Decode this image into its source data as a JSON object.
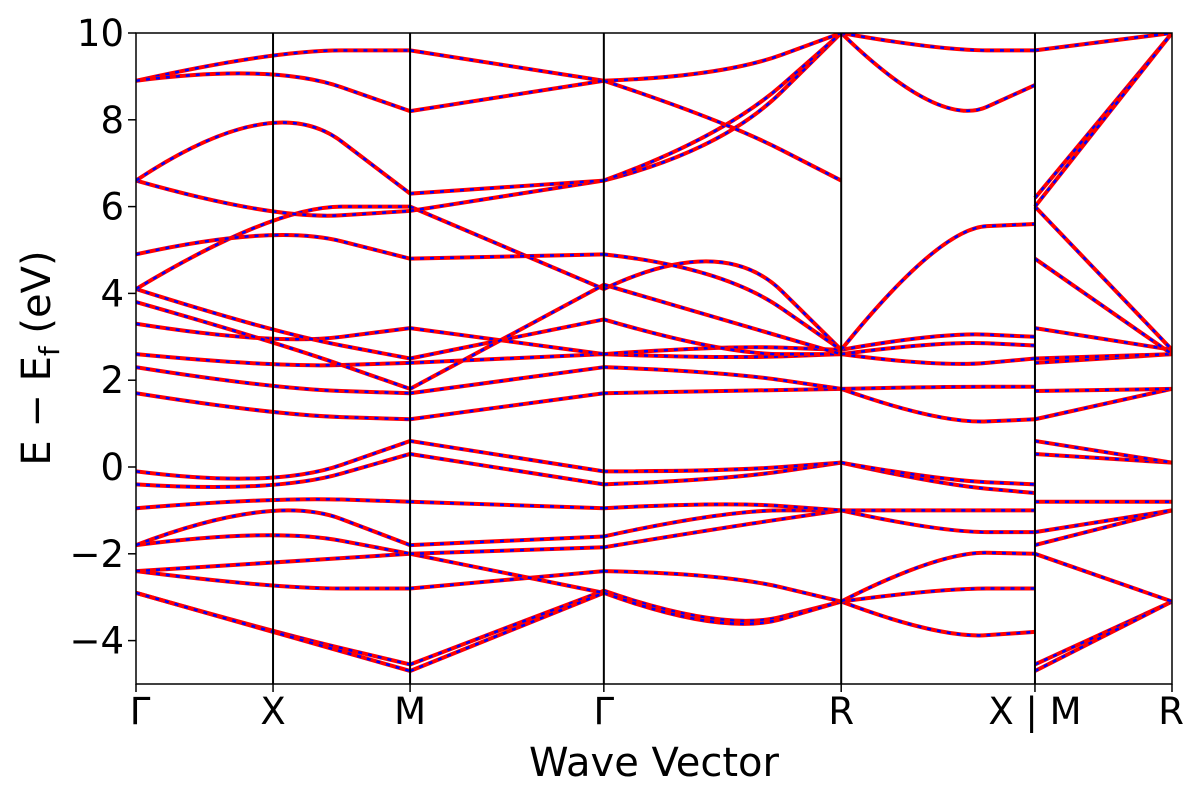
{
  "chart_data": {
    "type": "line",
    "title": "",
    "xlabel": "Wave Vector",
    "ylabel": "E − E_f (eV)",
    "ylabel_main": "E − E",
    "ylabel_sub": "f",
    "ylabel_unit": " (eV)",
    "ylim": [
      -5,
      10
    ],
    "yticks": [
      -4,
      -2,
      0,
      2,
      4,
      6,
      8,
      10
    ],
    "ytick_labels": [
      "−4",
      "−2",
      "0",
      "2",
      "4",
      "6",
      "8",
      "10"
    ],
    "grid": false,
    "legend": "none",
    "kpath": {
      "labels": [
        "Γ",
        "X",
        "M",
        "Γ",
        "R",
        "X | M",
        "R"
      ],
      "positions": [
        0.0,
        0.5,
        1.0,
        1.707,
        2.573,
        3.28,
        3.78
      ]
    },
    "colors": {
      "line_primary": "#ff0000",
      "line_secondary": "#0000ff",
      "axes": "#000000"
    },
    "series": [
      {
        "values": [
          {
            "k": [
              0,
              0.5,
              1
            ],
            "E": [
              -2.9,
              -3.8,
              -4.55
            ]
          },
          {
            "k": [
              1,
              1.707
            ],
            "E": [
              -4.55,
              -2.85
            ]
          },
          {
            "k": [
              1.707,
              2.14,
              2.573
            ],
            "E": [
              -2.85,
              -3.8,
              -3.1
            ]
          },
          {
            "k": [
              2.573,
              2.93,
              3.28
            ],
            "E": [
              -3.1,
              -3.95,
              -3.8
            ]
          },
          {
            "k": [
              3.28,
              3.78
            ],
            "E": [
              -4.55,
              -3.1
            ]
          },
          {
            "k": [
              0,
              0.5,
              1
            ],
            "E": [
              -2.9,
              -3.8,
              -4.7
            ]
          },
          {
            "k": [
              1,
              1.707
            ],
            "E": [
              -4.7,
              -2.9
            ]
          },
          {
            "k": [
              1.707,
              2.14,
              2.573
            ],
            "E": [
              -2.9,
              -3.9,
              -3.1
            ]
          },
          {
            "k": [
              3.28,
              3.78
            ],
            "E": [
              -4.7,
              -3.1
            ]
          },
          {
            "k": [
              0,
              0.5,
              1
            ],
            "E": [
              -2.4,
              -2.8,
              -2.8
            ]
          },
          {
            "k": [
              1,
              1.707
            ],
            "E": [
              -2.8,
              -2.4
            ]
          },
          {
            "k": [
              1.707,
              2.14,
              2.573
            ],
            "E": [
              -2.4,
              -2.45,
              -3.1
            ]
          },
          {
            "k": [
              2.573,
              2.93,
              3.28
            ],
            "E": [
              -3.1,
              -2.8,
              -2.8
            ]
          },
          {
            "k": [
              3.28,
              3.78
            ],
            "E": [
              -2.0,
              -3.1
            ]
          },
          {
            "k": [
              0,
              0.5,
              1
            ],
            "E": [
              -2.4,
              -2.2,
              -2.0
            ]
          },
          {
            "k": [
              1,
              1.707
            ],
            "E": [
              -2.0,
              -2.9
            ]
          },
          {
            "k": [
              2.573,
              2.93,
              3.28
            ],
            "E": [
              -3.1,
              -1.95,
              -2.0
            ]
          },
          {
            "k": [
              0,
              0.5,
              1
            ],
            "E": [
              -1.8,
              -1.4,
              -2.0
            ]
          },
          {
            "k": [
              1,
              1.707
            ],
            "E": [
              -2.0,
              -1.85
            ]
          },
          {
            "k": [
              1.707,
              2.14,
              2.573
            ],
            "E": [
              -1.85,
              -1.4,
              -1.0
            ]
          },
          {
            "k": [
              3.28,
              3.78
            ],
            "E": [
              -1.8,
              -1.0
            ]
          },
          {
            "k": [
              0,
              0.5,
              1
            ],
            "E": [
              -1.8,
              -0.6,
              -1.8
            ]
          },
          {
            "k": [
              1,
              1.707
            ],
            "E": [
              -1.8,
              -1.6
            ]
          },
          {
            "k": [
              1.707,
              2.14,
              2.573
            ],
            "E": [
              -1.6,
              -1.0,
              -1.0
            ]
          },
          {
            "k": [
              2.573,
              2.93,
              3.28
            ],
            "E": [
              -1.0,
              -1.5,
              -1.5
            ]
          },
          {
            "k": [
              3.28,
              3.78
            ],
            "E": [
              -1.5,
              -1.0
            ]
          },
          {
            "k": [
              0,
              0.5,
              1
            ],
            "E": [
              -0.95,
              -0.7,
              -0.8
            ]
          },
          {
            "k": [
              1,
              1.707
            ],
            "E": [
              -0.8,
              -0.95
            ]
          },
          {
            "k": [
              1.707,
              2.14,
              2.573
            ],
            "E": [
              -0.95,
              -0.8,
              -1.0
            ]
          },
          {
            "k": [
              2.573,
              2.93,
              3.28
            ],
            "E": [
              -1.0,
              -1.0,
              -1.0
            ]
          },
          {
            "k": [
              3.28,
              3.78
            ],
            "E": [
              -0.8,
              -0.8
            ]
          },
          {
            "k": [
              0,
              0.5,
              1
            ],
            "E": [
              -0.4,
              -0.6,
              0.3
            ]
          },
          {
            "k": [
              1,
              1.707
            ],
            "E": [
              0.3,
              -0.4
            ]
          },
          {
            "k": [
              1.707,
              2.14,
              2.573
            ],
            "E": [
              -0.4,
              -0.3,
              0.1
            ]
          },
          {
            "k": [
              2.573,
              2.93,
              3.28
            ],
            "E": [
              0.1,
              -0.4,
              -0.6
            ]
          },
          {
            "k": [
              3.28,
              3.78
            ],
            "E": [
              0.3,
              0.1
            ]
          },
          {
            "k": [
              0,
              0.5,
              1
            ],
            "E": [
              -0.1,
              -0.5,
              0.6
            ]
          },
          {
            "k": [
              1,
              1.707
            ],
            "E": [
              0.6,
              -0.1
            ]
          },
          {
            "k": [
              1.707,
              2.14,
              2.573
            ],
            "E": [
              -0.1,
              -0.1,
              0.1
            ]
          },
          {
            "k": [
              2.573,
              2.93,
              3.28
            ],
            "E": [
              0.1,
              -0.3,
              -0.4
            ]
          },
          {
            "k": [
              3.28,
              3.78
            ],
            "E": [
              0.6,
              0.1
            ]
          },
          {
            "k": [
              0,
              0.5,
              1
            ],
            "E": [
              1.7,
              1.2,
              1.1
            ]
          },
          {
            "k": [
              1,
              1.707
            ],
            "E": [
              1.1,
              1.7
            ]
          },
          {
            "k": [
              1.707,
              2.14,
              2.573
            ],
            "E": [
              1.7,
              1.75,
              1.8
            ]
          },
          {
            "k": [
              2.573,
              2.93,
              3.28
            ],
            "E": [
              1.8,
              1.0,
              1.1
            ]
          },
          {
            "k": [
              3.28,
              3.78
            ],
            "E": [
              1.1,
              1.8
            ]
          },
          {
            "k": [
              0,
              0.5,
              1
            ],
            "E": [
              2.3,
              1.8,
              1.7
            ]
          },
          {
            "k": [
              1,
              1.707
            ],
            "E": [
              1.7,
              2.3
            ]
          },
          {
            "k": [
              1.707,
              2.14,
              2.573
            ],
            "E": [
              2.3,
              2.2,
              1.8
            ]
          },
          {
            "k": [
              2.573,
              2.93,
              3.28
            ],
            "E": [
              1.8,
              1.85,
              1.85
            ]
          },
          {
            "k": [
              3.28,
              3.78
            ],
            "E": [
              1.75,
              1.8
            ]
          },
          {
            "k": [
              0,
              0.5,
              1
            ],
            "E": [
              2.6,
              2.3,
              2.4
            ]
          },
          {
            "k": [
              1,
              1.707
            ],
            "E": [
              2.4,
              2.6
            ]
          },
          {
            "k": [
              1.707,
              2.14,
              2.573
            ],
            "E": [
              2.6,
              2.5,
              2.6
            ]
          },
          {
            "k": [
              2.573,
              2.93,
              3.28
            ],
            "E": [
              2.6,
              2.3,
              2.5
            ]
          },
          {
            "k": [
              3.28,
              3.78
            ],
            "E": [
              2.4,
              2.6
            ]
          },
          {
            "k": [
              0,
              0.5,
              1
            ],
            "E": [
              3.3,
              2.8,
              3.2
            ]
          },
          {
            "k": [
              1,
              1.707
            ],
            "E": [
              3.2,
              2.6
            ]
          },
          {
            "k": [
              1.707,
              2.14,
              2.573
            ],
            "E": [
              2.6,
              2.8,
              2.7
            ]
          },
          {
            "k": [
              2.573,
              2.93,
              3.28
            ],
            "E": [
              2.7,
              3.1,
              3.0
            ]
          },
          {
            "k": [
              3.28,
              3.78
            ],
            "E": [
              3.2,
              2.7
            ]
          },
          {
            "k": [
              0,
              0.5,
              1
            ],
            "E": [
              4.1,
              3.1,
              2.5
            ]
          },
          {
            "k": [
              1,
              1.707
            ],
            "E": [
              2.5,
              3.4
            ]
          },
          {
            "k": [
              1.707,
              2.14,
              2.573
            ],
            "E": [
              3.4,
              2.6,
              2.6
            ]
          },
          {
            "k": [
              2.573,
              2.93,
              3.28
            ],
            "E": [
              2.6,
              2.9,
              2.8
            ]
          },
          {
            "k": [
              3.28,
              3.78
            ],
            "E": [
              2.5,
              2.6
            ]
          },
          {
            "k": [
              0,
              0.5,
              1
            ],
            "E": [
              4.1,
              6.0,
              6.0
            ]
          },
          {
            "k": [
              1,
              1.707
            ],
            "E": [
              6.0,
              4.1
            ]
          },
          {
            "k": [
              1.707,
              2.14,
              2.573
            ],
            "E": [
              4.1,
              5.4,
              2.7
            ]
          },
          {
            "k": [
              2.573,
              2.93,
              3.28
            ],
            "E": [
              2.7,
              5.5,
              5.6
            ]
          },
          {
            "k": [
              3.28,
              3.78
            ],
            "E": [
              6.0,
              2.7
            ]
          },
          {
            "k": [
              0,
              0.5,
              1
            ],
            "E": [
              3.8,
              2.9,
              1.8
            ]
          },
          {
            "k": [
              1,
              1.707
            ],
            "E": [
              1.8,
              4.2
            ]
          },
          {
            "k": [
              1.707,
              2.14,
              2.573
            ],
            "E": [
              4.2,
              3.4,
              2.6
            ]
          },
          {
            "k": [
              0,
              0.5,
              1
            ],
            "E": [
              4.9,
              5.6,
              4.8
            ]
          },
          {
            "k": [
              1,
              1.707
            ],
            "E": [
              4.8,
              4.9
            ]
          },
          {
            "k": [
              1.707,
              2.14,
              2.573
            ],
            "E": [
              4.9,
              4.6,
              2.7
            ]
          },
          {
            "k": [
              3.28,
              3.78
            ],
            "E": [
              4.8,
              2.6
            ]
          },
          {
            "k": [
              0,
              0.5,
              1
            ],
            "E": [
              6.6,
              5.7,
              5.9
            ]
          },
          {
            "k": [
              1,
              1.707
            ],
            "E": [
              5.9,
              6.6
            ]
          },
          {
            "k": [
              1.707,
              2.14,
              2.573
            ],
            "E": [
              6.6,
              7.3,
              10.0
            ]
          },
          {
            "k": [
              0,
              0.5,
              1
            ],
            "E": [
              6.6,
              8.7,
              6.3
            ]
          },
          {
            "k": [
              1,
              1.707
            ],
            "E": [
              6.3,
              6.6
            ]
          },
          {
            "k": [
              1.707,
              2.14,
              2.573
            ],
            "E": [
              6.6,
              7.6,
              10.0
            ]
          },
          {
            "k": [
              2.573,
              2.93,
              3.28
            ],
            "E": [
              10.0,
              7.8,
              8.8
            ]
          },
          {
            "k": [
              3.28,
              3.78
            ],
            "E": [
              6.2,
              10.0
            ]
          },
          {
            "k": [
              0,
              0.5,
              1
            ],
            "E": [
              8.9,
              9.6,
              9.6
            ]
          },
          {
            "k": [
              1,
              1.707
            ],
            "E": [
              9.6,
              8.9
            ]
          },
          {
            "k": [
              1.707,
              2.14,
              2.573
            ],
            "E": [
              8.9,
              9.0,
              10.0
            ]
          },
          {
            "k": [
              2.573,
              2.93,
              3.28
            ],
            "E": [
              10.0,
              9.6,
              9.6
            ]
          },
          {
            "k": [
              3.28,
              3.78
            ],
            "E": [
              9.6,
              10.0
            ]
          },
          {
            "k": [
              0,
              0.5,
              1
            ],
            "E": [
              8.9,
              9.3,
              8.2
            ]
          },
          {
            "k": [
              1,
              1.707
            ],
            "E": [
              8.2,
              8.9
            ]
          },
          {
            "k": [
              1.707,
              2.14,
              2.573
            ],
            "E": [
              8.9,
              8.0,
              6.6
            ]
          },
          {
            "k": [
              3.28,
              3.78
            ],
            "E": [
              6.0,
              10.0
            ]
          }
        ]
      }
    ]
  }
}
